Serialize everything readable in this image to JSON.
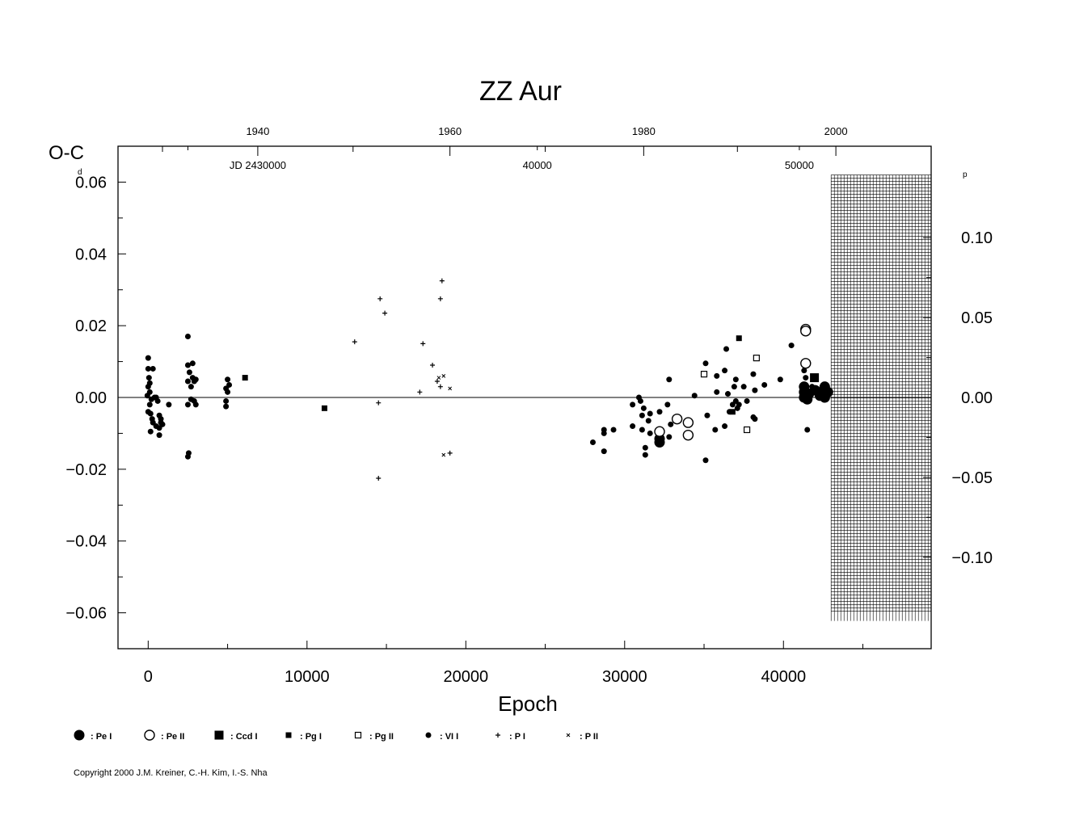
{
  "chart_data": {
    "type": "scatter",
    "title": "ZZ  Aur",
    "xlabel": "Epoch",
    "ylabel": "O-C",
    "ylabel_unit": "d",
    "right_unit": "p",
    "xlim": [
      -1900,
      49300
    ],
    "ylim": [
      -0.07,
      0.07
    ],
    "period_days": 0.4452,
    "x_ticks": [
      0,
      10000,
      20000,
      30000,
      40000
    ],
    "x_tick_labels": [
      "0",
      "10000",
      "20000",
      "30000",
      "40000"
    ],
    "y_ticks": [
      -0.06,
      -0.04,
      -0.02,
      0.0,
      0.02,
      0.04,
      0.06
    ],
    "y_tick_labels": [
      "−0.06",
      "−0.04",
      "−0.02",
      "0.00",
      "0.02",
      "0.04",
      "0.06"
    ],
    "right_ticks": [
      -0.1,
      -0.05,
      0.0,
      0.05,
      0.1
    ],
    "right_tick_labels": [
      "−0.10",
      "−0.05",
      "0.00",
      "0.05",
      "0.10"
    ],
    "top_year_ticks": [
      {
        "epoch": 6900,
        "label": "1940"
      },
      {
        "epoch": 19000,
        "label": "1960"
      },
      {
        "epoch": 31200,
        "label": "1980"
      },
      {
        "epoch": 43300,
        "label": "2000"
      }
    ],
    "top_minor_epochs": [
      900,
      12900,
      25000,
      37100
    ],
    "jd_labels": [
      {
        "epoch": 6900,
        "label": "JD  2430000"
      },
      {
        "epoch": 24500,
        "label": "40000"
      },
      {
        "epoch": 41000,
        "label": "50000"
      }
    ],
    "jd_ticks": [
      2500,
      24500,
      41000
    ],
    "hatched_x_start": 43000,
    "hatched_y_range": [
      -0.06,
      0.062
    ],
    "grid": false,
    "legend_position": "bottom",
    "legend": [
      {
        "symbol": "pe-i",
        "label": ": Pe  I"
      },
      {
        "symbol": "pe-ii",
        "label": ": Pe  II"
      },
      {
        "symbol": "ccd-i",
        "label": ": Ccd  I"
      },
      {
        "symbol": "pg-i",
        "label": ": Pg  I"
      },
      {
        "symbol": "pg-ii",
        "label": ": Pg  II"
      },
      {
        "symbol": "vi-i",
        "label": ": VI  I"
      },
      {
        "symbol": "p-i",
        "label": ": P  I"
      },
      {
        "symbol": "p-ii",
        "label": ": P  II"
      }
    ],
    "series": [
      {
        "name": "Pe I",
        "marker": "pe-i",
        "points": [
          [
            32200,
            -0.0115
          ],
          [
            32200,
            -0.0125
          ],
          [
            41300,
            0.003
          ],
          [
            41300,
            0.0015
          ],
          [
            41300,
            0.0
          ],
          [
            41500,
            -0.0005
          ],
          [
            41600,
            0.001
          ],
          [
            42000,
            0.002
          ],
          [
            42300,
            0.0005
          ],
          [
            42500,
            0.0015
          ],
          [
            42600,
            0.0
          ],
          [
            42600,
            0.003
          ],
          [
            42800,
            0.0015
          ]
        ]
      },
      {
        "name": "Pe II",
        "marker": "pe-ii",
        "points": [
          [
            32200,
            -0.0095
          ],
          [
            33300,
            -0.006
          ],
          [
            34000,
            -0.007
          ],
          [
            34000,
            -0.0105
          ],
          [
            41400,
            0.019
          ],
          [
            41400,
            0.0185
          ],
          [
            41400,
            0.0095
          ]
        ]
      },
      {
        "name": "Ccd I",
        "marker": "ccd-i",
        "points": [
          [
            41950,
            0.0055
          ]
        ]
      },
      {
        "name": "Pg I",
        "marker": "pg-i",
        "points": [
          [
            6100,
            0.0055
          ],
          [
            11100,
            -0.003
          ],
          [
            37200,
            0.0165
          ],
          [
            36800,
            -0.004
          ]
        ]
      },
      {
        "name": "Pg II",
        "marker": "pg-ii",
        "points": [
          [
            35000,
            0.0065
          ],
          [
            37700,
            -0.009
          ],
          [
            38300,
            0.011
          ]
        ]
      },
      {
        "name": "VI I",
        "marker": "vi-i",
        "points": [
          [
            0,
            0.011
          ],
          [
            0,
            0.008
          ],
          [
            50,
            0.0055
          ],
          [
            100,
            0.004
          ],
          [
            0,
            0.003
          ],
          [
            100,
            0.0015
          ],
          [
            -50,
            0.0005
          ],
          [
            200,
            -0.0005
          ],
          [
            100,
            -0.002
          ],
          [
            0,
            -0.004
          ],
          [
            150,
            -0.0045
          ],
          [
            250,
            -0.006
          ],
          [
            150,
            -0.0095
          ],
          [
            300,
            0.008
          ],
          [
            400,
            0.0
          ],
          [
            300,
            -0.007
          ],
          [
            500,
            -0.008
          ],
          [
            600,
            -0.001
          ],
          [
            700,
            -0.005
          ],
          [
            700,
            -0.0085
          ],
          [
            800,
            -0.007
          ],
          [
            800,
            -0.006
          ],
          [
            900,
            -0.0075
          ],
          [
            700,
            -0.0105
          ],
          [
            1300,
            -0.002
          ],
          [
            500,
            0.0
          ],
          [
            2500,
            0.017
          ],
          [
            2500,
            0.009
          ],
          [
            2600,
            0.007
          ],
          [
            2800,
            0.0095
          ],
          [
            2800,
            0.0055
          ],
          [
            2500,
            0.0045
          ],
          [
            2900,
            0.0045
          ],
          [
            3000,
            0.005
          ],
          [
            2700,
            0.003
          ],
          [
            2500,
            -0.002
          ],
          [
            2700,
            -0.0005
          ],
          [
            2900,
            -0.001
          ],
          [
            3000,
            -0.002
          ],
          [
            2550,
            -0.0155
          ],
          [
            2500,
            -0.0165
          ],
          [
            5000,
            0.005
          ],
          [
            5100,
            0.0035
          ],
          [
            4900,
            0.0025
          ],
          [
            5000,
            0.0015
          ],
          [
            4900,
            -0.001
          ],
          [
            4900,
            -0.0025
          ],
          [
            28000,
            -0.0125
          ],
          [
            28700,
            -0.009
          ],
          [
            28700,
            -0.01
          ],
          [
            28700,
            -0.015
          ],
          [
            29300,
            -0.009
          ],
          [
            30500,
            -0.002
          ],
          [
            30500,
            -0.008
          ],
          [
            30900,
            0.0
          ],
          [
            31000,
            -0.001
          ],
          [
            31200,
            -0.003
          ],
          [
            31100,
            -0.009
          ],
          [
            31100,
            -0.005
          ],
          [
            31300,
            -0.014
          ],
          [
            31300,
            -0.016
          ],
          [
            31600,
            -0.0045
          ],
          [
            31500,
            -0.0065
          ],
          [
            31600,
            -0.01
          ],
          [
            32200,
            -0.004
          ],
          [
            32700,
            -0.002
          ],
          [
            32800,
            0.005
          ],
          [
            32900,
            -0.0075
          ],
          [
            32800,
            -0.011
          ],
          [
            34400,
            0.0005
          ],
          [
            35100,
            0.0095
          ],
          [
            35200,
            -0.005
          ],
          [
            35100,
            -0.0175
          ],
          [
            35800,
            0.006
          ],
          [
            35800,
            0.0015
          ],
          [
            35700,
            -0.009
          ],
          [
            36300,
            0.0075
          ],
          [
            36400,
            0.0135
          ],
          [
            36500,
            0.001
          ],
          [
            36300,
            -0.008
          ],
          [
            36600,
            -0.004
          ],
          [
            36800,
            -0.002
          ],
          [
            36900,
            0.003
          ],
          [
            37000,
            0.005
          ],
          [
            37000,
            -0.001
          ],
          [
            37100,
            -0.003
          ],
          [
            37200,
            -0.002
          ],
          [
            37500,
            0.003
          ],
          [
            37700,
            -0.001
          ],
          [
            38100,
            0.0065
          ],
          [
            38200,
            0.002
          ],
          [
            38100,
            -0.0055
          ],
          [
            38200,
            -0.006
          ],
          [
            38800,
            0.0035
          ],
          [
            39800,
            0.005
          ],
          [
            40500,
            0.0145
          ],
          [
            41300,
            0.0075
          ],
          [
            41400,
            0.0055
          ],
          [
            41500,
            -0.009
          ],
          [
            41800,
            0.003
          ]
        ]
      },
      {
        "name": "P I",
        "marker": "p-i",
        "points": [
          [
            13000,
            0.0155
          ],
          [
            14600,
            0.0275
          ],
          [
            14900,
            0.0235
          ],
          [
            14500,
            -0.0015
          ],
          [
            14500,
            -0.0225
          ],
          [
            17100,
            0.0015
          ],
          [
            17300,
            0.015
          ],
          [
            17900,
            0.009
          ],
          [
            18200,
            0.0045
          ],
          [
            18500,
            0.0325
          ],
          [
            18400,
            0.0275
          ],
          [
            18400,
            0.003
          ],
          [
            19000,
            -0.0155
          ]
        ]
      },
      {
        "name": "P II",
        "marker": "p-ii",
        "points": [
          [
            18300,
            0.0055
          ],
          [
            18600,
            0.006
          ],
          [
            19000,
            0.0025
          ],
          [
            18600,
            -0.016
          ]
        ]
      }
    ]
  },
  "copyright": "Copyright 2000 J.M. Kreiner, C.-H. Kim, I.-S. Nha"
}
